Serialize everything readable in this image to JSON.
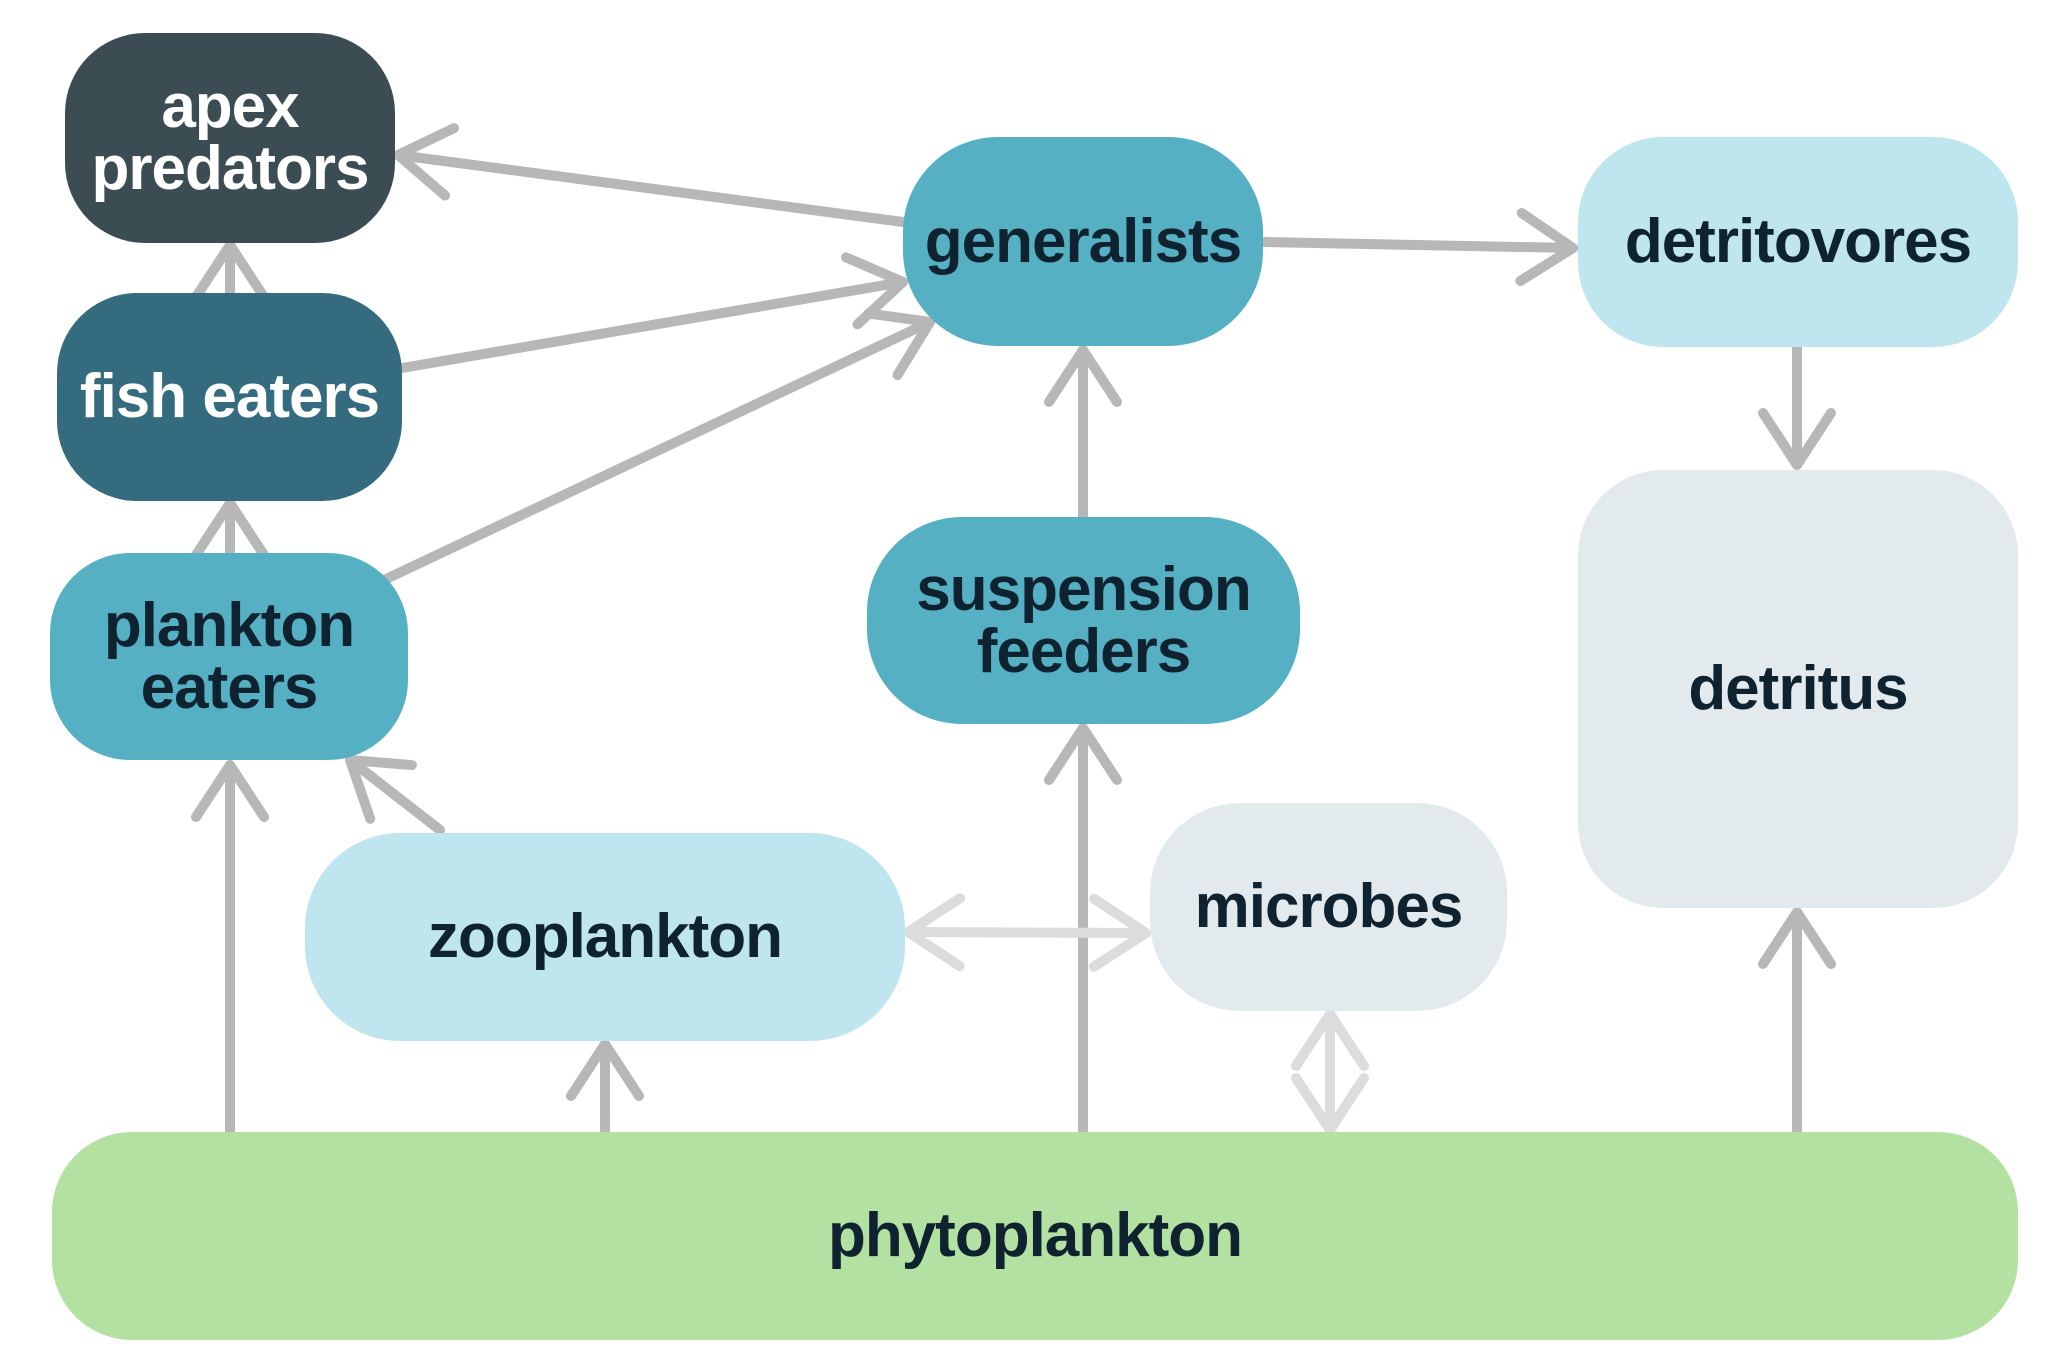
{
  "palette": {
    "apex": "#3b4c53",
    "fish": "#356b7e",
    "mid": "#55b0c4",
    "light": "#bfe5ef",
    "pale": "#e2eaee",
    "producer": "#b2e1a1",
    "text_dark": "#0f2230",
    "text_light": "#ffffff",
    "edge": "#b7b7b7",
    "edge_faint": "#dcdcdc"
  },
  "nodes": {
    "apex": {
      "label": "apex\npredators",
      "color_key": "apex",
      "text_key": "text_light"
    },
    "fish": {
      "label": "fish eaters",
      "color_key": "fish",
      "text_key": "text_light"
    },
    "plankton_eaters": {
      "label": "plankton\neaters",
      "color_key": "mid",
      "text_key": "text_dark"
    },
    "generalists": {
      "label": "generalists",
      "color_key": "mid",
      "text_key": "text_dark"
    },
    "suspension": {
      "label": "suspension\nfeeders",
      "color_key": "mid",
      "text_key": "text_dark"
    },
    "detritovores": {
      "label": "detritovores",
      "color_key": "light",
      "text_key": "text_dark"
    },
    "detritus": {
      "label": "detritus",
      "color_key": "pale",
      "text_key": "text_dark"
    },
    "zooplankton": {
      "label": "zooplankton",
      "color_key": "light",
      "text_key": "text_dark"
    },
    "microbes": {
      "label": "microbes",
      "color_key": "pale",
      "text_key": "text_dark"
    },
    "phytoplankton": {
      "label": "phytoplankton",
      "color_key": "producer",
      "text_key": "text_dark"
    }
  },
  "edges": [
    {
      "from": "fish",
      "to": "apex",
      "style": "solid"
    },
    {
      "from": "plankton_eaters",
      "to": "fish",
      "style": "solid"
    },
    {
      "from": "generalists",
      "to": "apex",
      "style": "solid"
    },
    {
      "from": "fish",
      "to": "generalists",
      "style": "solid"
    },
    {
      "from": "plankton_eaters",
      "to": "generalists",
      "style": "solid"
    },
    {
      "from": "generalists",
      "to": "detritovores",
      "style": "solid"
    },
    {
      "from": "detritovores",
      "to": "detritus",
      "style": "solid"
    },
    {
      "from": "suspension",
      "to": "generalists",
      "style": "solid"
    },
    {
      "from": "zooplankton",
      "to": "plankton_eaters",
      "style": "solid"
    },
    {
      "from": "phytoplankton",
      "to": "plankton_eaters",
      "style": "solid"
    },
    {
      "from": "phytoplankton",
      "to": "zooplankton",
      "style": "solid"
    },
    {
      "from": "phytoplankton",
      "to": "suspension",
      "style": "solid"
    },
    {
      "from": "phytoplankton",
      "to": "detritus",
      "style": "solid"
    },
    {
      "from": "zooplankton",
      "to": "microbes",
      "style": "bidirectional-faint"
    },
    {
      "from": "phytoplankton",
      "to": "microbes",
      "style": "bidirectional-faint"
    }
  ]
}
